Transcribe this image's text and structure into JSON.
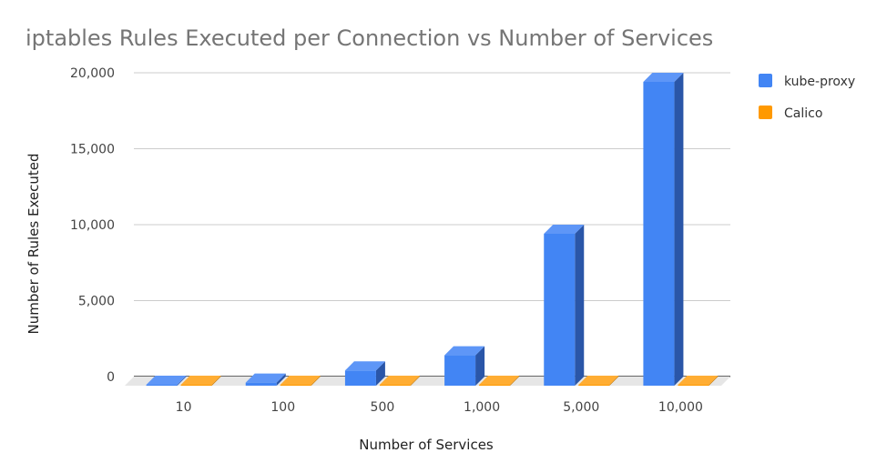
{
  "chart_data": {
    "type": "bar",
    "title": "iptables Rules Executed per Connection vs Number of Services",
    "xlabel": "Number of Services",
    "ylabel": "Number of Rules Executed",
    "categories": [
      "10",
      "100",
      "500",
      "1,000",
      "5,000",
      "10,000"
    ],
    "series": [
      {
        "name": "kube-proxy",
        "values": [
          20,
          200,
          1000,
          2000,
          10000,
          20000
        ],
        "color": "#4285f4",
        "side_color": "#2a56a8",
        "top_color": "#5e96f7"
      },
      {
        "name": "Calico",
        "values": [
          0,
          0,
          0,
          0,
          0,
          0
        ],
        "color": "#ff9900",
        "side_color": "#c77700",
        "top_color": "#ffad33"
      }
    ],
    "ylim": [
      0,
      20000
    ],
    "yticks": [
      0,
      5000,
      10000,
      15000,
      20000
    ],
    "ytick_labels": [
      "0",
      "5,000",
      "10,000",
      "15,000",
      "20,000"
    ],
    "grid": true,
    "legend_position": "right",
    "style": "3d-bar"
  }
}
